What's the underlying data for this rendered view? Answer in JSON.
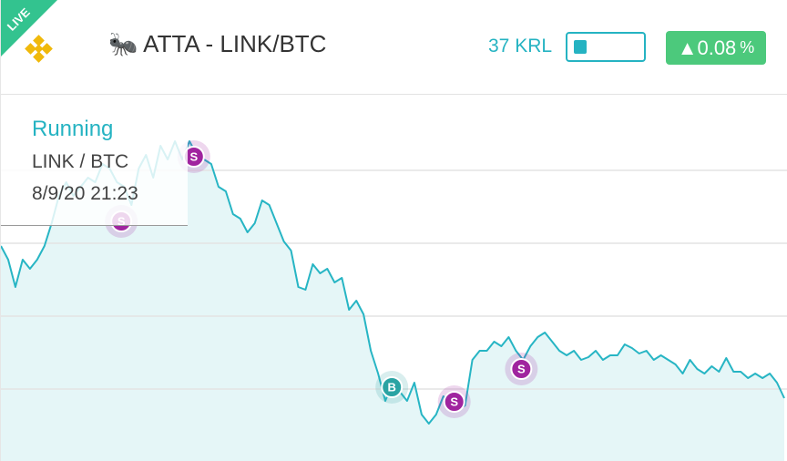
{
  "header": {
    "badge": "LIVE",
    "icon": "🐜",
    "title": "ATTA - LINK/BTC",
    "amount": "37 KRL",
    "change": "0.08",
    "change_unit": "%"
  },
  "info": {
    "status": "Running",
    "pair": "LINK / BTC",
    "date": "8/9/20 21:23"
  },
  "chart_data": {
    "type": "line",
    "color": "#27b5c4",
    "fill": "#e5f6f7",
    "ylim": [
      0,
      400
    ],
    "values": [
      236,
      221,
      191,
      221,
      211,
      221,
      236,
      261,
      291,
      306,
      291,
      301,
      311,
      306,
      326,
      321,
      306,
      301,
      281,
      321,
      336,
      311,
      346,
      331,
      351,
      331,
      351,
      336,
      331,
      326,
      301,
      296,
      271,
      266,
      251,
      261,
      286,
      281,
      261,
      241,
      231,
      191,
      188,
      216,
      206,
      211,
      196,
      201,
      166,
      176,
      161,
      121,
      96,
      66,
      86,
      76,
      66,
      86,
      51,
      41,
      51,
      71,
      66,
      56,
      61,
      111,
      121,
      121,
      131,
      126,
      136,
      121,
      111,
      126,
      136,
      141,
      131,
      121,
      116,
      121,
      111,
      114,
      121,
      111,
      116,
      116,
      128,
      124,
      118,
      121,
      111,
      116,
      111,
      106,
      96,
      111,
      101,
      96,
      104,
      98,
      113,
      98,
      98,
      91,
      96,
      91,
      96,
      86,
      69
    ],
    "markers": [
      {
        "label": "S",
        "x": 16.6,
        "value": 263,
        "color": "#a0249f"
      },
      {
        "label": "S",
        "x": 26.6,
        "value": 334,
        "color": "#a0249f"
      },
      {
        "label": "B",
        "x": 53.9,
        "value": 81,
        "color": "#2aa3a3"
      },
      {
        "label": "S",
        "x": 62.5,
        "value": 65,
        "color": "#a0249f"
      },
      {
        "label": "S",
        "x": 71.75,
        "value": 101,
        "color": "#a0249f"
      }
    ]
  }
}
